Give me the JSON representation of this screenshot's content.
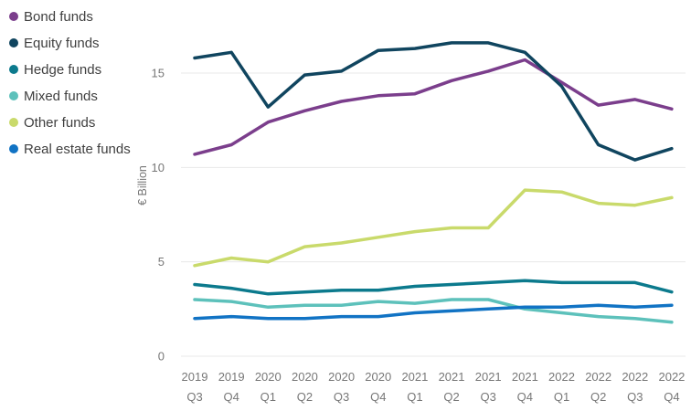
{
  "chart_data": {
    "type": "line",
    "title": "",
    "xlabel": "",
    "ylabel": "€ Billion",
    "ylim": [
      0,
      17
    ],
    "y_ticks": [
      0,
      5,
      10,
      15
    ],
    "grid": true,
    "legend_position": "top-left",
    "categories": [
      [
        "2019",
        "Q3"
      ],
      [
        "2019",
        "Q4"
      ],
      [
        "2020",
        "Q1"
      ],
      [
        "2020",
        "Q2"
      ],
      [
        "2020",
        "Q3"
      ],
      [
        "2020",
        "Q4"
      ],
      [
        "2021",
        "Q1"
      ],
      [
        "2021",
        "Q2"
      ],
      [
        "2021",
        "Q3"
      ],
      [
        "2021",
        "Q4"
      ],
      [
        "2022",
        "Q1"
      ],
      [
        "2022",
        "Q2"
      ],
      [
        "2022",
        "Q3"
      ],
      [
        "2022",
        "Q4"
      ]
    ],
    "series": [
      {
        "name": "Bond funds",
        "color": "#7B3E8C",
        "values": [
          10.7,
          11.2,
          12.4,
          13.0,
          13.5,
          13.8,
          13.9,
          14.6,
          15.1,
          15.7,
          14.5,
          13.3,
          13.6,
          13.1
        ]
      },
      {
        "name": "Equity funds",
        "color": "#10455F",
        "values": [
          15.8,
          16.1,
          13.2,
          14.9,
          15.1,
          16.2,
          16.3,
          16.6,
          16.6,
          16.1,
          14.3,
          11.2,
          10.4,
          11.0
        ]
      },
      {
        "name": "Hedge funds",
        "color": "#0C7A8D",
        "values": [
          3.8,
          3.6,
          3.3,
          3.4,
          3.5,
          3.5,
          3.7,
          3.8,
          3.9,
          4.0,
          3.9,
          3.9,
          3.9,
          3.4
        ]
      },
      {
        "name": "Mixed funds",
        "color": "#5DC1BB",
        "values": [
          3.0,
          2.9,
          2.6,
          2.7,
          2.7,
          2.9,
          2.8,
          3.0,
          3.0,
          2.5,
          2.3,
          2.1,
          2.0,
          1.8
        ]
      },
      {
        "name": "Other funds",
        "color": "#C9DA6B",
        "values": [
          4.8,
          5.2,
          5.0,
          5.8,
          6.0,
          6.3,
          6.6,
          6.8,
          6.8,
          8.8,
          8.7,
          8.1,
          8.0,
          8.4
        ]
      },
      {
        "name": "Real estate funds",
        "color": "#1173C4",
        "values": [
          2.0,
          2.1,
          2.0,
          2.0,
          2.1,
          2.1,
          2.3,
          2.4,
          2.5,
          2.6,
          2.6,
          2.7,
          2.6,
          2.7
        ]
      }
    ]
  }
}
